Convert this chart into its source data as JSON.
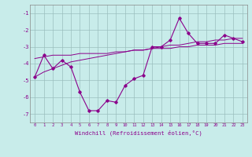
{
  "x_values": [
    0,
    1,
    2,
    3,
    4,
    5,
    6,
    7,
    8,
    9,
    10,
    11,
    12,
    13,
    14,
    15,
    16,
    17,
    18,
    19,
    20,
    21,
    22,
    23
  ],
  "windchill_line": [
    -4.8,
    -3.5,
    -4.3,
    -3.8,
    -4.2,
    -5.7,
    -6.8,
    -6.8,
    -6.2,
    -6.3,
    -5.3,
    -4.9,
    -4.7,
    -3.0,
    -3.0,
    -2.6,
    -1.3,
    -2.2,
    -2.8,
    -2.8,
    -2.8,
    -2.3,
    -2.5,
    -2.7
  ],
  "trend_line1": [
    -3.7,
    -3.6,
    -3.5,
    -3.5,
    -3.5,
    -3.4,
    -3.4,
    -3.4,
    -3.4,
    -3.3,
    -3.3,
    -3.2,
    -3.2,
    -3.1,
    -3.1,
    -3.1,
    -3.0,
    -3.0,
    -2.9,
    -2.9,
    -2.9,
    -2.8,
    -2.8,
    -2.8
  ],
  "trend_line2": [
    -4.8,
    -4.5,
    -4.3,
    -4.1,
    -3.9,
    -3.8,
    -3.7,
    -3.6,
    -3.5,
    -3.4,
    -3.3,
    -3.2,
    -3.2,
    -3.1,
    -3.0,
    -2.9,
    -2.9,
    -2.8,
    -2.7,
    -2.7,
    -2.6,
    -2.6,
    -2.5,
    -2.5
  ],
  "line_color": "#8B008B",
  "bg_color": "#c8ecea",
  "grid_color": "#9bbfbe",
  "xlabel": "Windchill (Refroidissement éolien,°C)",
  "ylim": [
    -7.5,
    -0.5
  ],
  "xlim": [
    -0.5,
    23.5
  ],
  "yticks": [
    -7,
    -6,
    -5,
    -4,
    -3,
    -2,
    -1
  ],
  "xtick_labels": [
    "0",
    "1",
    "2",
    "3",
    "4",
    "5",
    "6",
    "7",
    "8",
    "9",
    "10",
    "11",
    "12",
    "13",
    "14",
    "15",
    "16",
    "17",
    "18",
    "19",
    "20",
    "21",
    "22",
    "23"
  ]
}
